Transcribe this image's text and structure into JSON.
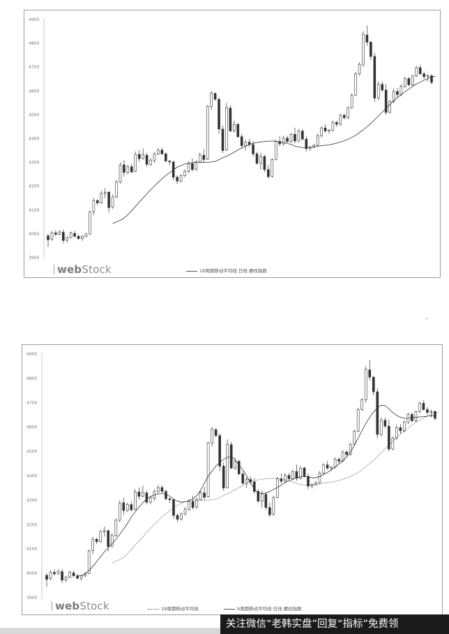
{
  "brand": {
    "logo_text_web": "web",
    "logo_text_stock": "Stock"
  },
  "watermark": {
    "text": "关注微信“老韩实盘”回复“指标”免费领"
  },
  "chart_data": [
    {
      "type": "candlestick",
      "title": "",
      "ylim": [
        3900,
        4900
      ],
      "ytick_labels": [
        "3900",
        "4000",
        "4100",
        "4200",
        "4300",
        "4400",
        "4500",
        "4600",
        "4700",
        "4800",
        "4900"
      ],
      "legend": [
        "18周期移动平均线 日线 螺纹指数"
      ],
      "legend_placement": "bottom",
      "grid": false,
      "candles": [
        [
          3992,
          4000,
          3945,
          3975
        ],
        [
          3978,
          4012,
          3970,
          4005
        ],
        [
          4004,
          4016,
          3990,
          3998
        ],
        [
          3998,
          4016,
          3994,
          4008
        ],
        [
          4007,
          4018,
          3960,
          3972
        ],
        [
          3973,
          3990,
          3964,
          3985
        ],
        [
          3985,
          4010,
          3980,
          4004
        ],
        [
          4002,
          4012,
          3984,
          3990
        ],
        [
          3990,
          3998,
          3974,
          3980
        ],
        [
          3980,
          3994,
          3970,
          3990
        ],
        [
          3990,
          4003,
          3985,
          4000
        ],
        [
          3999,
          4098,
          3997,
          4092
        ],
        [
          4093,
          4150,
          4078,
          4140
        ],
        [
          4140,
          4145,
          4120,
          4130
        ],
        [
          4130,
          4180,
          4125,
          4170
        ],
        [
          4170,
          4192,
          4150,
          4175
        ],
        [
          4175,
          4180,
          4090,
          4110
        ],
        [
          4112,
          4165,
          4105,
          4155
        ],
        [
          4155,
          4226,
          4150,
          4218
        ],
        [
          4218,
          4300,
          4210,
          4288
        ],
        [
          4290,
          4310,
          4240,
          4258
        ],
        [
          4258,
          4290,
          4250,
          4282
        ],
        [
          4282,
          4295,
          4255,
          4260
        ],
        [
          4262,
          4346,
          4258,
          4334
        ],
        [
          4334,
          4352,
          4302,
          4316
        ],
        [
          4316,
          4360,
          4312,
          4332
        ],
        [
          4330,
          4340,
          4282,
          4292
        ],
        [
          4292,
          4318,
          4285,
          4310
        ],
        [
          4308,
          4344,
          4298,
          4336
        ],
        [
          4336,
          4362,
          4330,
          4352
        ],
        [
          4352,
          4362,
          4332,
          4336
        ],
        [
          4336,
          4344,
          4300,
          4306
        ],
        [
          4306,
          4310,
          4288,
          4302
        ],
        [
          4302,
          4306,
          4225,
          4238
        ],
        [
          4238,
          4246,
          4210,
          4222
        ],
        [
          4222,
          4250,
          4216,
          4244
        ],
        [
          4244,
          4272,
          4238,
          4262
        ],
        [
          4262,
          4305,
          4256,
          4295
        ],
        [
          4295,
          4318,
          4262,
          4270
        ],
        [
          4272,
          4310,
          4265,
          4302
        ],
        [
          4302,
          4340,
          4298,
          4332
        ],
        [
          4330,
          4356,
          4300,
          4312
        ],
        [
          4314,
          4540,
          4310,
          4535
        ],
        [
          4535,
          4600,
          4520,
          4592
        ],
        [
          4590,
          4594,
          4560,
          4565
        ],
        [
          4565,
          4575,
          4420,
          4440
        ],
        [
          4440,
          4455,
          4340,
          4350
        ],
        [
          4352,
          4550,
          4348,
          4530
        ],
        [
          4528,
          4540,
          4428,
          4432
        ],
        [
          4432,
          4475,
          4425,
          4460
        ],
        [
          4460,
          4465,
          4402,
          4408
        ],
        [
          4408,
          4420,
          4362,
          4370
        ],
        [
          4370,
          4395,
          4350,
          4385
        ],
        [
          4385,
          4398,
          4366,
          4375
        ],
        [
          4375,
          4390,
          4325,
          4336
        ],
        [
          4336,
          4345,
          4290,
          4296
        ],
        [
          4296,
          4340,
          4270,
          4325
        ],
        [
          4325,
          4332,
          4260,
          4270
        ],
        [
          4270,
          4290,
          4232,
          4240
        ],
        [
          4242,
          4318,
          4236,
          4312
        ],
        [
          4312,
          4395,
          4308,
          4388
        ],
        [
          4388,
          4410,
          4368,
          4378
        ],
        [
          4378,
          4412,
          4370,
          4402
        ],
        [
          4402,
          4412,
          4384,
          4388
        ],
        [
          4388,
          4425,
          4382,
          4418
        ],
        [
          4418,
          4446,
          4380,
          4390
        ],
        [
          4390,
          4440,
          4385,
          4432
        ],
        [
          4432,
          4438,
          4392,
          4398
        ],
        [
          4398,
          4410,
          4345,
          4358
        ],
        [
          4358,
          4370,
          4348,
          4364
        ],
        [
          4364,
          4378,
          4360,
          4372
        ],
        [
          4372,
          4420,
          4365,
          4412
        ],
        [
          4412,
          4452,
          4405,
          4445
        ],
        [
          4445,
          4460,
          4425,
          4432
        ],
        [
          4432,
          4440,
          4420,
          4436
        ],
        [
          4436,
          4476,
          4430,
          4468
        ],
        [
          4468,
          4475,
          4450,
          4460
        ],
        [
          4460,
          4505,
          4455,
          4498
        ],
        [
          4498,
          4505,
          4480,
          4488
        ],
        [
          4488,
          4535,
          4482,
          4530
        ],
        [
          4530,
          4590,
          4525,
          4583
        ],
        [
          4583,
          4680,
          4578,
          4672
        ],
        [
          4672,
          4720,
          4665,
          4712
        ],
        [
          4712,
          4850,
          4700,
          4838
        ],
        [
          4835,
          4875,
          4790,
          4805
        ],
        [
          4805,
          4810,
          4730,
          4745
        ],
        [
          4745,
          4760,
          4555,
          4570
        ],
        [
          4570,
          4640,
          4562,
          4628
        ],
        [
          4628,
          4640,
          4596,
          4604
        ],
        [
          4604,
          4630,
          4500,
          4510
        ],
        [
          4510,
          4562,
          4505,
          4555
        ],
        [
          4555,
          4610,
          4548,
          4598
        ],
        [
          4598,
          4612,
          4570,
          4585
        ],
        [
          4585,
          4628,
          4578,
          4620
        ],
        [
          4620,
          4660,
          4612,
          4652
        ],
        [
          4652,
          4660,
          4620,
          4626
        ],
        [
          4626,
          4668,
          4620,
          4664
        ],
        [
          4664,
          4705,
          4658,
          4698
        ],
        [
          4698,
          4710,
          4668,
          4672
        ],
        [
          4672,
          4682,
          4650,
          4660
        ],
        [
          4660,
          4672,
          4640,
          4664
        ],
        [
          4664,
          4670,
          4628,
          4636
        ]
      ],
      "series": [
        {
          "name": "18周期移动平均线",
          "style": "solid",
          "start_index": 17,
          "values": [
            4043,
            4050,
            4057,
            4066,
            4080,
            4097,
            4115,
            4133,
            4150,
            4168,
            4185,
            4201,
            4216,
            4231,
            4245,
            4257,
            4269,
            4280,
            4287,
            4293,
            4297,
            4299,
            4300,
            4300,
            4300,
            4300,
            4302,
            4304,
            4311,
            4320,
            4326,
            4334,
            4343,
            4352,
            4360,
            4368,
            4375,
            4380,
            4384,
            4386,
            4388,
            4389,
            4390,
            4389,
            4387,
            4384,
            4380,
            4375,
            4369,
            4365,
            4362,
            4362,
            4363,
            4365,
            4368,
            4370,
            4372,
            4374,
            4377,
            4381,
            4386,
            4391,
            4397,
            4405,
            4414,
            4425,
            4437,
            4450,
            4464,
            4479,
            4495,
            4511,
            4527,
            4543,
            4558,
            4572,
            4585,
            4597,
            4608,
            4619,
            4629,
            4637,
            4645,
            4652,
            4658,
            4662
          ]
        }
      ]
    },
    {
      "type": "candlestick",
      "title": "",
      "ylim": [
        3900,
        4900
      ],
      "ytick_labels": [
        "3900",
        "4000",
        "4100",
        "4200",
        "4300",
        "4400",
        "4500",
        "4600",
        "4700",
        "4800",
        "4900"
      ],
      "legend": [
        "18周期移动平均线",
        "9周期移动平均线 日线 螺纹指数"
      ],
      "legend_placement": "bottom",
      "grid": false,
      "candles_same_as_chart": 1,
      "series": [
        {
          "name": "18周期移动平均线",
          "style": "dotted",
          "start_index": 17,
          "values": [
            4043,
            4050,
            4057,
            4066,
            4080,
            4097,
            4115,
            4133,
            4150,
            4168,
            4185,
            4201,
            4216,
            4231,
            4245,
            4257,
            4269,
            4280,
            4287,
            4293,
            4297,
            4299,
            4300,
            4300,
            4300,
            4300,
            4302,
            4304,
            4311,
            4320,
            4326,
            4334,
            4343,
            4352,
            4360,
            4368,
            4375,
            4380,
            4384,
            4386,
            4388,
            4389,
            4390,
            4389,
            4387,
            4384,
            4380,
            4375,
            4369,
            4365,
            4362,
            4362,
            4363,
            4365,
            4368,
            4370,
            4372,
            4374,
            4377,
            4381,
            4386,
            4391,
            4397,
            4405,
            4414,
            4425,
            4437,
            4450,
            4464,
            4479,
            4495,
            4511,
            4527,
            4543,
            4558,
            4572,
            4585,
            4597,
            4608,
            4619,
            4629,
            4637,
            4645,
            4652,
            4658,
            4662
          ]
        },
        {
          "name": "9周期移动平均线",
          "style": "solid",
          "start_index": 8,
          "values": [
            3990,
            3990,
            3998,
            4012,
            4028,
            4048,
            4068,
            4088,
            4106,
            4121,
            4140,
            4160,
            4182,
            4205,
            4230,
            4252,
            4272,
            4290,
            4305,
            4315,
            4322,
            4326,
            4328,
            4324,
            4316,
            4305,
            4296,
            4292,
            4294,
            4298,
            4306,
            4318,
            4340,
            4370,
            4398,
            4420,
            4440,
            4455,
            4468,
            4476,
            4480,
            4465,
            4445,
            4425,
            4400,
            4372,
            4345,
            4330,
            4328,
            4330,
            4336,
            4344,
            4352,
            4362,
            4372,
            4380,
            4386,
            4392,
            4396,
            4398,
            4396,
            4392,
            4392,
            4398,
            4406,
            4414,
            4424,
            4436,
            4448,
            4462,
            4478,
            4498,
            4525,
            4555,
            4585,
            4615,
            4640,
            4662,
            4680,
            4690,
            4688,
            4675,
            4660,
            4648,
            4640,
            4636,
            4636,
            4638,
            4640,
            4642,
            4643,
            4645,
            4646,
            4646
          ]
        }
      ]
    }
  ]
}
